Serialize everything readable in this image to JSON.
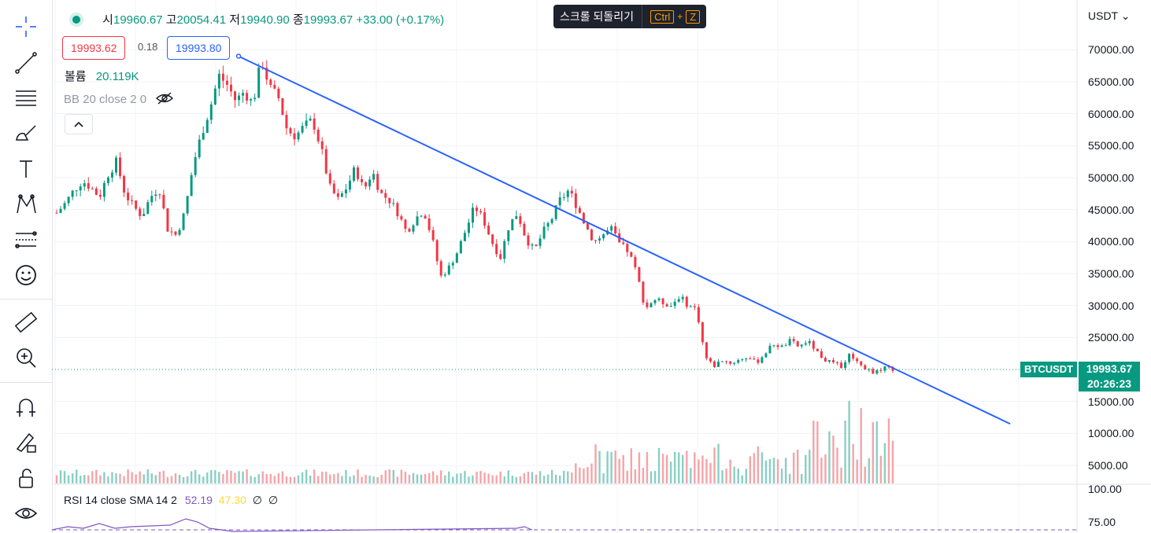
{
  "legend": {
    "open_k": "시",
    "open_v": "19960.67",
    "high_k": "고",
    "high_v": "20054.41",
    "low_k": "저",
    "low_v": "19940.90",
    "close_k": "종",
    "close_v": "19993.67",
    "change": "+33.00 (+0.17%)"
  },
  "prices": {
    "bid": "19993.62",
    "spread": "0.18",
    "ask": "19993.80"
  },
  "volume": {
    "label": "볼륨",
    "value": "20.119K"
  },
  "bb": {
    "label": "BB 20 close 2 0"
  },
  "tooltip": {
    "text": "스크롤 되돌리기",
    "key1": "Ctrl",
    "plus": "+",
    "key2": "Z"
  },
  "currency": "USDT ⌄",
  "symbol": {
    "name": "BTCUSDT",
    "price": "19993.67",
    "countdown": "20:26:23"
  },
  "rsi": {
    "label": "RSI 14 close SMA 14 2",
    "v1": "52.19",
    "v2": "47.30",
    "v3": "∅",
    "v4": "∅"
  },
  "axis": {
    "labels": [
      "70000.00",
      "65000.00",
      "60000.00",
      "55000.00",
      "50000.00",
      "45000.00",
      "40000.00",
      "35000.00",
      "30000.00",
      "25000.00",
      "15000.00",
      "10000.00",
      "5000.00",
      "100.00",
      "75.00"
    ]
  },
  "colors": {
    "up": "#089981",
    "down": "#f23645",
    "trendline": "#2962ff",
    "rsi_line": "#7e57c2",
    "rsi_sma": "#fdd835"
  },
  "chart_data": {
    "type": "candlestick",
    "close_series": [
      44500,
      46000,
      48000,
      49500,
      48500,
      47000,
      50500,
      52500,
      47500,
      45500,
      44000,
      47000,
      48500,
      42000,
      41000,
      44500,
      52000,
      57000,
      61000,
      66000,
      64500,
      62000,
      63500,
      61500,
      68500,
      64000,
      62500,
      57500,
      56500,
      58000,
      59000,
      54500,
      48500,
      46500,
      48500,
      51500,
      48000,
      51000,
      47500,
      46500,
      44500,
      41500,
      43500,
      45000,
      40500,
      34500,
      36000,
      38500,
      42000,
      45500,
      43500,
      40000,
      37500,
      42500,
      44500,
      40500,
      38500,
      41500,
      43500,
      46500,
      48000,
      45500,
      42500,
      40000,
      41000,
      42000,
      39500,
      38500,
      35000,
      29500,
      31000,
      30500,
      30000,
      31500,
      30000,
      29500,
      22000,
      20500,
      21500,
      21000,
      21500,
      22000,
      21000,
      22500,
      24000,
      23500,
      24500,
      23500,
      24500,
      23000,
      21500,
      21000,
      20500,
      22500,
      21000,
      20000,
      19500,
      20500,
      19993
    ],
    "trendline": {
      "start_price": 69000,
      "end_price": 11500
    },
    "ylim": [
      0,
      72000
    ]
  }
}
